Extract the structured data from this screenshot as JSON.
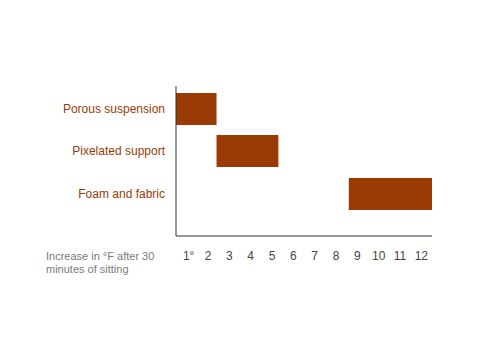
{
  "chart_data": {
    "type": "range_bar",
    "orientation": "horizontal",
    "categories": [
      "Porous suspension",
      "Pixelated support",
      "Foam and fabric"
    ],
    "starts": [
      0.5,
      2.4,
      8.6
    ],
    "ends": [
      2.4,
      5.3,
      12.5
    ],
    "color": "#9a3b06",
    "x_label": "Increase in °F after 30 minutes of sitting",
    "xlim": [
      0.5,
      12.5
    ],
    "xticks": [
      {
        "value": 1,
        "label": "1°"
      },
      2,
      3,
      4,
      5,
      6,
      7,
      8,
      9,
      10,
      11,
      12
    ],
    "grid": false
  }
}
